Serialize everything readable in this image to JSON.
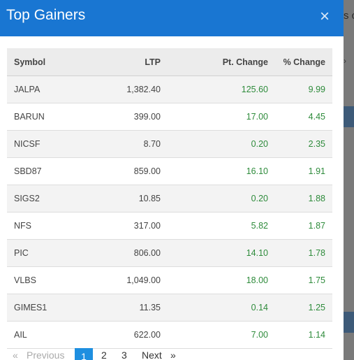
{
  "background": {
    "header_text": "s c",
    "chevron": "›"
  },
  "modal": {
    "title": "Top Gainers",
    "close_glyph": "×"
  },
  "table": {
    "headers": {
      "symbol": "Symbol",
      "ltp": "LTP",
      "pt_change": "Pt. Change",
      "pct_change": "% Change"
    },
    "rows": [
      {
        "symbol": "JALPA",
        "ltp": "1,382.40",
        "pt_change": "125.60",
        "pct_change": "9.99"
      },
      {
        "symbol": "BARUN",
        "ltp": "399.00",
        "pt_change": "17.00",
        "pct_change": "4.45"
      },
      {
        "symbol": "NICSF",
        "ltp": "8.70",
        "pt_change": "0.20",
        "pct_change": "2.35"
      },
      {
        "symbol": "SBD87",
        "ltp": "859.00",
        "pt_change": "16.10",
        "pct_change": "1.91"
      },
      {
        "symbol": "SIGS2",
        "ltp": "10.85",
        "pt_change": "0.20",
        "pct_change": "1.88"
      },
      {
        "symbol": "NFS",
        "ltp": "317.00",
        "pt_change": "5.82",
        "pct_change": "1.87"
      },
      {
        "symbol": "PIC",
        "ltp": "806.00",
        "pt_change": "14.10",
        "pct_change": "1.78"
      },
      {
        "symbol": "VLBS",
        "ltp": "1,049.00",
        "pt_change": "18.00",
        "pct_change": "1.75"
      },
      {
        "symbol": "GIMES1",
        "ltp": "11.35",
        "pt_change": "0.14",
        "pct_change": "1.25"
      },
      {
        "symbol": "AIL",
        "ltp": "622.00",
        "pt_change": "7.00",
        "pct_change": "1.14"
      }
    ]
  },
  "pagination": {
    "prev_arrow": "«",
    "previous": "Previous",
    "pages": [
      "1",
      "2",
      "3"
    ],
    "active_page": "1",
    "next": "Next",
    "next_arrow": "»"
  },
  "colors": {
    "header": "#1976d2",
    "gain": "#2e8b3b",
    "active_page": "#1e8fe0"
  }
}
